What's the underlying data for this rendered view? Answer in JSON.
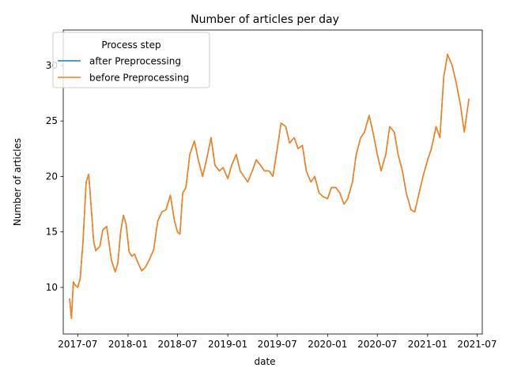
{
  "chart_data": {
    "type": "line",
    "title": "Number of articles per day",
    "xlabel": "date",
    "ylabel": "Number of articles",
    "legend": {
      "title": "Process step",
      "placement": "top-left",
      "entries": [
        {
          "name": "after Preprocessing",
          "color": "#1f77b4"
        },
        {
          "name": "before Preprocessing",
          "color": "#ff7f0e"
        }
      ]
    },
    "grid": false,
    "xlim": [
      "2017-05-09",
      "2021-07-20"
    ],
    "ylim": [
      5.8,
      33.2
    ],
    "x_ticks": [
      {
        "date": "2017-07-01",
        "label": "2017-07"
      },
      {
        "date": "2018-01-01",
        "label": "2018-01"
      },
      {
        "date": "2018-07-01",
        "label": "2018-07"
      },
      {
        "date": "2019-01-01",
        "label": "2019-01"
      },
      {
        "date": "2019-07-01",
        "label": "2019-07"
      },
      {
        "date": "2020-01-01",
        "label": "2020-01"
      },
      {
        "date": "2020-07-01",
        "label": "2020-07"
      },
      {
        "date": "2021-01-01",
        "label": "2021-01"
      },
      {
        "date": "2021-07-01",
        "label": "2021-07"
      }
    ],
    "y_ticks": [
      10,
      15,
      20,
      25,
      30
    ],
    "x": [
      "2017-06-01",
      "2017-06-08",
      "2017-06-15",
      "2017-06-22",
      "2017-07-01",
      "2017-07-10",
      "2017-07-20",
      "2017-08-01",
      "2017-08-10",
      "2017-08-20",
      "2017-08-28",
      "2017-09-05",
      "2017-09-12",
      "2017-09-20",
      "2017-10-01",
      "2017-10-15",
      "2017-11-01",
      "2017-11-15",
      "2017-11-25",
      "2017-12-05",
      "2017-12-15",
      "2017-12-25",
      "2018-01-05",
      "2018-01-15",
      "2018-01-25",
      "2018-02-05",
      "2018-02-20",
      "2018-03-05",
      "2018-03-20",
      "2018-04-05",
      "2018-04-20",
      "2018-05-05",
      "2018-05-20",
      "2018-06-05",
      "2018-06-20",
      "2018-07-01",
      "2018-07-10",
      "2018-07-20",
      "2018-08-01",
      "2018-08-15",
      "2018-09-01",
      "2018-09-15",
      "2018-10-01",
      "2018-10-15",
      "2018-11-01",
      "2018-11-15",
      "2018-12-01",
      "2018-12-15",
      "2019-01-01",
      "2019-01-15",
      "2019-02-01",
      "2019-02-15",
      "2019-03-01",
      "2019-03-15",
      "2019-04-01",
      "2019-04-15",
      "2019-05-01",
      "2019-05-15",
      "2019-06-01",
      "2019-06-15",
      "2019-07-01",
      "2019-07-15",
      "2019-08-01",
      "2019-08-15",
      "2019-09-01",
      "2019-09-15",
      "2019-10-01",
      "2019-10-15",
      "2019-11-01",
      "2019-11-15",
      "2019-12-01",
      "2019-12-15",
      "2020-01-01",
      "2020-01-15",
      "2020-02-01",
      "2020-02-15",
      "2020-03-01",
      "2020-03-15",
      "2020-04-01",
      "2020-04-15",
      "2020-05-01",
      "2020-05-15",
      "2020-06-01",
      "2020-06-15",
      "2020-07-01",
      "2020-07-15",
      "2020-08-01",
      "2020-08-15",
      "2020-09-01",
      "2020-09-15",
      "2020-10-01",
      "2020-10-15",
      "2020-11-01",
      "2020-11-15",
      "2020-12-01",
      "2020-12-15",
      "2021-01-01",
      "2021-01-15",
      "2021-02-01",
      "2021-02-15",
      "2021-03-01",
      "2021-03-15",
      "2021-04-01",
      "2021-04-15",
      "2021-05-01",
      "2021-05-15",
      "2021-06-01"
    ],
    "series": [
      {
        "name": "after Preprocessing",
        "color": "#1f77b4",
        "values": [
          9.0,
          7.2,
          10.5,
          10.2,
          10.0,
          10.8,
          14.0,
          19.5,
          20.2,
          17.0,
          14.2,
          13.3,
          13.5,
          13.7,
          15.2,
          15.5,
          12.5,
          11.4,
          12.2,
          15.0,
          16.5,
          15.7,
          13.2,
          12.8,
          13.0,
          12.3,
          11.5,
          11.8,
          12.5,
          13.4,
          16.0,
          16.8,
          17.0,
          18.3,
          16.0,
          15.0,
          14.8,
          18.5,
          19.0,
          22.0,
          23.2,
          21.5,
          20.0,
          21.5,
          23.5,
          21.0,
          20.5,
          20.8,
          19.8,
          21.0,
          22.0,
          20.5,
          20.0,
          19.5,
          20.5,
          21.5,
          21.0,
          20.5,
          20.5,
          20.0,
          22.5,
          24.8,
          24.5,
          23.0,
          23.5,
          22.5,
          22.8,
          20.5,
          19.5,
          20.0,
          18.5,
          18.2,
          18.0,
          19.0,
          19.0,
          18.5,
          17.5,
          18.0,
          19.5,
          22.0,
          23.5,
          24.0,
          25.5,
          24.0,
          22.0,
          20.5,
          22.0,
          24.5,
          24.0,
          22.0,
          20.5,
          18.5,
          17.0,
          16.8,
          18.5,
          20.0,
          21.5,
          22.5,
          24.5,
          23.5,
          29.0,
          31.0,
          30.0,
          28.5,
          26.5,
          24.0,
          27.0
        ]
      },
      {
        "name": "before Preprocessing",
        "color": "#ff7f0e",
        "values": [
          9.0,
          7.2,
          10.5,
          10.2,
          10.0,
          10.8,
          14.0,
          19.5,
          20.2,
          17.0,
          14.2,
          13.3,
          13.5,
          13.7,
          15.2,
          15.5,
          12.5,
          11.4,
          12.2,
          15.0,
          16.5,
          15.7,
          13.2,
          12.8,
          13.0,
          12.3,
          11.5,
          11.8,
          12.5,
          13.4,
          16.0,
          16.8,
          17.0,
          18.3,
          16.0,
          15.0,
          14.8,
          18.5,
          19.0,
          22.0,
          23.2,
          21.5,
          20.0,
          21.5,
          23.5,
          21.0,
          20.5,
          20.8,
          19.8,
          21.0,
          22.0,
          20.5,
          20.0,
          19.5,
          20.5,
          21.5,
          21.0,
          20.5,
          20.5,
          20.0,
          22.5,
          24.8,
          24.5,
          23.0,
          23.5,
          22.5,
          22.8,
          20.5,
          19.5,
          20.0,
          18.5,
          18.2,
          18.0,
          19.0,
          19.0,
          18.5,
          17.5,
          18.0,
          19.5,
          22.0,
          23.5,
          24.0,
          25.5,
          24.0,
          22.0,
          20.5,
          22.0,
          24.5,
          24.0,
          22.0,
          20.5,
          18.5,
          17.0,
          16.8,
          18.5,
          20.0,
          21.5,
          22.5,
          24.5,
          23.5,
          29.0,
          31.0,
          30.0,
          28.5,
          26.5,
          24.0,
          27.0
        ]
      }
    ]
  }
}
